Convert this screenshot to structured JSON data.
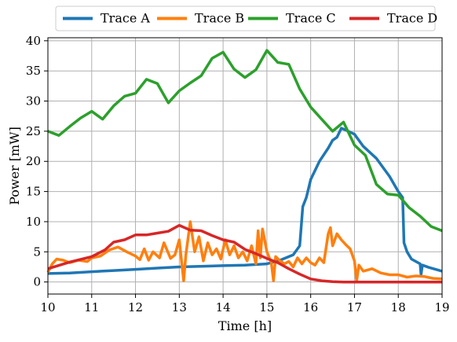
{
  "chart_data": {
    "type": "line",
    "xlabel": "Time [h]",
    "ylabel": "Power [mW]",
    "xlim": [
      10,
      19
    ],
    "ylim": [
      -2,
      40.5
    ],
    "xticks": [
      10,
      11,
      12,
      13,
      14,
      15,
      16,
      17,
      18,
      19
    ],
    "yticks": [
      0,
      5,
      10,
      15,
      20,
      25,
      30,
      35,
      40
    ],
    "grid": true,
    "legend_position": "top",
    "series": [
      {
        "name": "Trace A",
        "color": "#1f77b4",
        "x": [
          10,
          10.5,
          11,
          11.5,
          12,
          12.5,
          13,
          13.5,
          14,
          14.5,
          15,
          15.3,
          15.6,
          15.75,
          15.82,
          15.9,
          16.0,
          16.2,
          16.4,
          16.5,
          16.6,
          16.7,
          16.8,
          17.0,
          17.2,
          17.5,
          17.8,
          18.0,
          18.1,
          18.13,
          18.2,
          18.3,
          18.5,
          18.52,
          18.55,
          18.7,
          19
        ],
        "y": [
          1.4,
          1.5,
          1.7,
          1.9,
          2.1,
          2.3,
          2.5,
          2.6,
          2.7,
          2.8,
          3.0,
          3.6,
          4.5,
          6.0,
          12.5,
          14.0,
          17.0,
          20.0,
          22.2,
          23.5,
          24.0,
          25.5,
          25.2,
          24.5,
          22.5,
          20.5,
          17.5,
          15.0,
          14.0,
          6.5,
          5.0,
          3.8,
          3.0,
          1.2,
          2.8,
          2.4,
          1.8
        ]
      },
      {
        "name": "Trace B",
        "color": "#ff7f0e",
        "x": [
          10,
          10.1,
          10.2,
          10.35,
          10.5,
          10.7,
          10.9,
          11.0,
          11.2,
          11.4,
          11.6,
          11.8,
          12.0,
          12.1,
          12.2,
          12.3,
          12.4,
          12.55,
          12.65,
          12.8,
          12.9,
          13.0,
          13.1,
          13.15,
          13.25,
          13.35,
          13.45,
          13.55,
          13.65,
          13.75,
          13.85,
          13.95,
          14.05,
          14.15,
          14.25,
          14.35,
          14.45,
          14.55,
          14.65,
          14.75,
          14.8,
          14.85,
          14.9,
          15.0,
          15.1,
          15.15,
          15.2,
          15.3,
          15.4,
          15.5,
          15.6,
          15.7,
          15.8,
          15.9,
          16.0,
          16.1,
          16.2,
          16.3,
          16.4,
          16.45,
          16.5,
          16.6,
          16.7,
          16.8,
          16.9,
          17.0,
          17.05,
          17.1,
          17.2,
          17.4,
          17.6,
          17.8,
          18.0,
          18.2,
          18.4,
          18.6,
          18.8,
          19
        ],
        "y": [
          1.6,
          3.0,
          3.8,
          3.6,
          3.2,
          3.6,
          3.4,
          4.0,
          4.3,
          5.3,
          5.8,
          5.0,
          4.3,
          3.7,
          5.5,
          3.6,
          5.0,
          4.0,
          6.5,
          3.9,
          4.5,
          7.0,
          0.2,
          4.5,
          10.0,
          5.0,
          7.5,
          3.5,
          6.5,
          4.5,
          5.5,
          3.8,
          7.0,
          4.5,
          6.0,
          4.0,
          5.0,
          3.5,
          6.0,
          3.0,
          8.5,
          4.0,
          8.8,
          5.0,
          3.2,
          0.2,
          4.2,
          3.5,
          3.0,
          3.4,
          2.5,
          4.0,
          3.0,
          4.0,
          3.2,
          2.8,
          4.0,
          3.2,
          8.0,
          9.0,
          6.0,
          8.0,
          7.0,
          6.2,
          5.5,
          3.5,
          0.2,
          2.8,
          1.8,
          2.2,
          1.5,
          1.2,
          1.2,
          0.8,
          1.0,
          0.9,
          0.6,
          0.5
        ]
      },
      {
        "name": "Trace C",
        "color": "#2ca02c",
        "x": [
          10,
          10.25,
          10.5,
          10.75,
          11.0,
          11.25,
          11.5,
          11.75,
          12.0,
          12.25,
          12.5,
          12.75,
          13.0,
          13.25,
          13.5,
          13.75,
          14.0,
          14.25,
          14.5,
          14.75,
          15.0,
          15.25,
          15.5,
          15.75,
          16.0,
          16.25,
          16.5,
          16.75,
          17.0,
          17.25,
          17.5,
          17.75,
          18.0,
          18.25,
          18.5,
          18.75,
          19.0
        ],
        "y": [
          25.0,
          24.3,
          25.8,
          27.2,
          28.3,
          27.0,
          29.2,
          30.8,
          31.3,
          33.6,
          32.9,
          29.7,
          31.7,
          33.0,
          34.2,
          37.1,
          38.1,
          35.3,
          33.9,
          35.2,
          38.4,
          36.4,
          36.1,
          32.0,
          29.0,
          27.0,
          25.0,
          26.5,
          22.7,
          21.0,
          16.2,
          14.6,
          14.4,
          12.3,
          10.9,
          9.2,
          8.5
        ]
      },
      {
        "name": "Trace D",
        "color": "#d62728",
        "x": [
          10,
          10.5,
          11.0,
          11.3,
          11.5,
          11.75,
          12.0,
          12.25,
          12.5,
          12.75,
          13.0,
          13.25,
          13.5,
          13.75,
          14.0,
          14.25,
          14.5,
          14.75,
          15.0,
          15.25,
          15.5,
          15.75,
          16.0,
          16.25,
          16.5,
          16.75,
          17.0,
          17.5,
          18.0,
          18.5,
          19.0
        ],
        "y": [
          2.2,
          3.3,
          4.2,
          5.3,
          6.6,
          7.0,
          7.8,
          7.8,
          8.1,
          8.4,
          9.4,
          8.6,
          8.5,
          7.7,
          7.0,
          6.6,
          5.4,
          4.7,
          3.9,
          3.2,
          2.2,
          1.3,
          0.5,
          0.2,
          0.05,
          0,
          0,
          0,
          0,
          0,
          0
        ]
      }
    ]
  }
}
